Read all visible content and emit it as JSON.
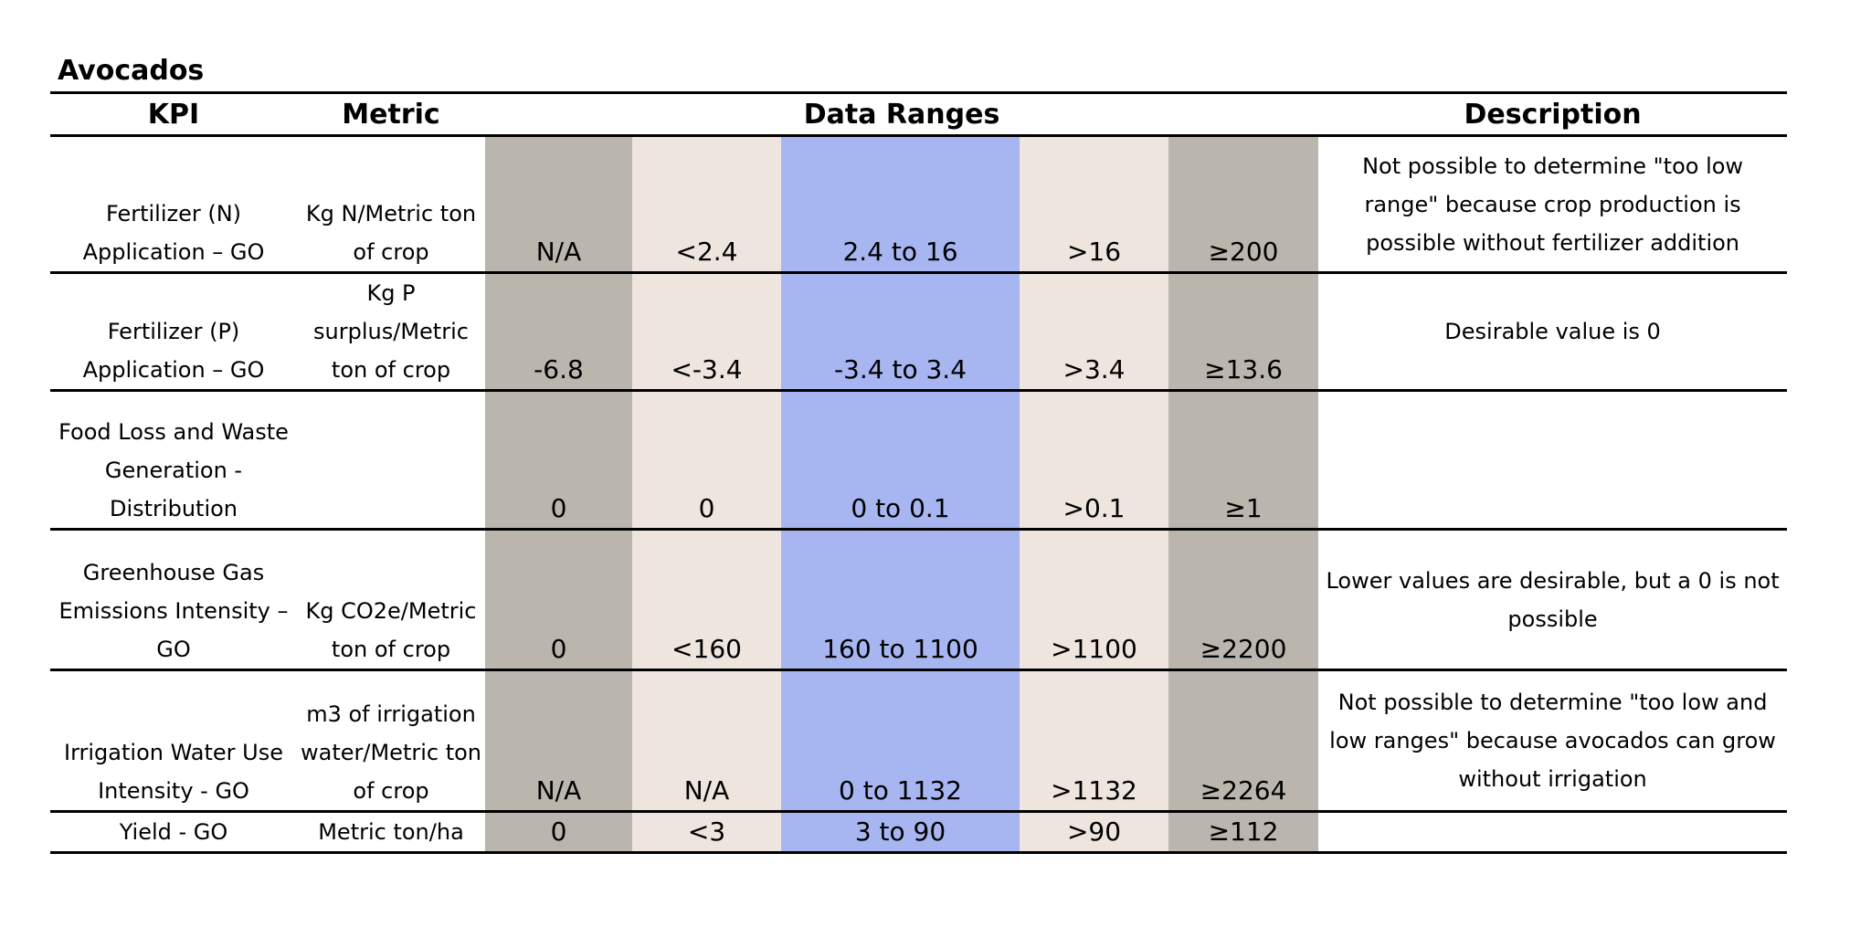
{
  "title": "Avocados",
  "table": {
    "header": [
      "KPI",
      "Metric",
      "Data Ranges",
      "Description"
    ],
    "rows": [
      {
        "kpi": "Fertilizer (N) Application – GO",
        "metric": "Kg N/Metric ton of crop",
        "ranges": [
          "N/A",
          "<2.4",
          "2.4 to 16",
          ">16",
          "≥200"
        ],
        "description": "Not possible to determine \"too low range\" because crop production is possible without fertilizer addition"
      },
      {
        "kpi": "Fertilizer (P) Application – GO",
        "metric": "Kg P surplus/Metric ton of crop",
        "ranges": [
          "-6.8",
          "<-3.4",
          "-3.4 to 3.4",
          ">3.4",
          "≥13.6"
        ],
        "description": "Desirable value is 0"
      },
      {
        "kpi": "Food Loss and Waste Generation - Distribution",
        "metric": null,
        "ranges": [
          "0",
          "0",
          "0 to 0.1",
          ">0.1",
          "≥1"
        ],
        "description": null
      },
      {
        "kpi": "Greenhouse Gas Emissions Intensity – GO",
        "metric": "Kg CO2e/Metric ton of crop",
        "ranges": [
          "0",
          "<160",
          "160 to 1100",
          ">1100",
          "≥2200"
        ],
        "description": "Lower values are desirable, but a 0 is not possible"
      },
      {
        "kpi": "Irrigation Water Use Intensity - GO",
        "metric": "m3 of irrigation water/Metric ton of crop",
        "ranges": [
          "N/A",
          "N/A",
          "0 to 1132",
          ">1132",
          "≥2264"
        ],
        "description": "Not possible to determine \"too low and low ranges\" because avocados can grow without irrigation"
      },
      {
        "kpi": "Yield - GO",
        "metric": "Metric ton/ha",
        "ranges": [
          "0",
          "<3",
          "3  to 90",
          ">90",
          "≥112"
        ],
        "description": null
      }
    ]
  }
}
